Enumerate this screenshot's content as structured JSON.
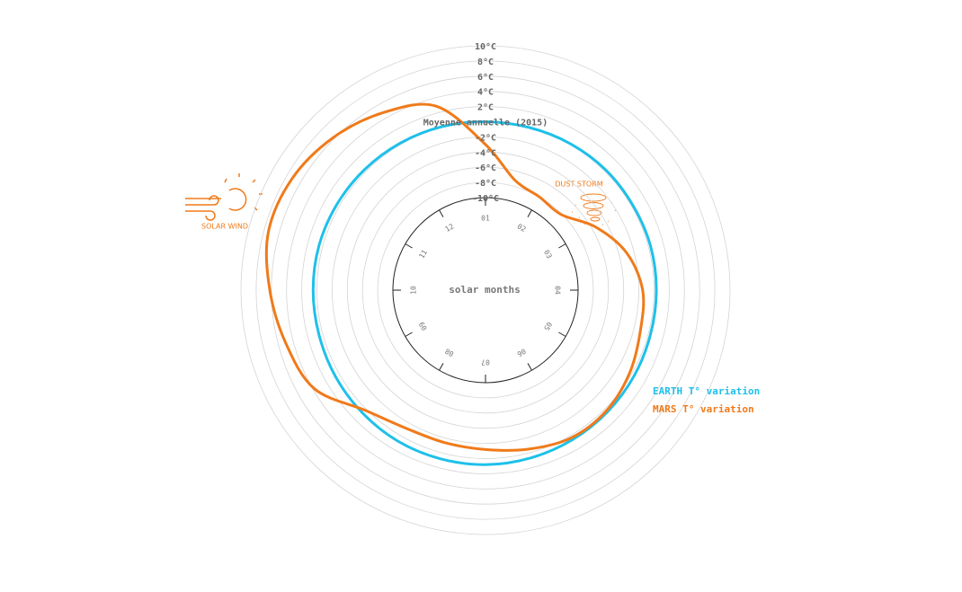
{
  "chart_data": {
    "type": "radial-line",
    "center_label": "solar months",
    "xlim": [
      0,
      12
    ],
    "xticks": [
      {
        "value": 0,
        "label": "01"
      },
      {
        "value": 1,
        "label": "02"
      },
      {
        "value": 2,
        "label": "03"
      },
      {
        "value": 3,
        "label": "04"
      },
      {
        "value": 4,
        "label": "05"
      },
      {
        "value": 5,
        "label": "06"
      },
      {
        "value": 6,
        "label": "07"
      },
      {
        "value": 7,
        "label": "08"
      },
      {
        "value": 8,
        "label": "09"
      },
      {
        "value": 9,
        "label": "10"
      },
      {
        "value": 10,
        "label": "11"
      },
      {
        "value": 11,
        "label": "12"
      }
    ],
    "ylim": [
      -10,
      10
    ],
    "yticks": [
      {
        "value": -10,
        "label": "-10°C"
      },
      {
        "value": -8,
        "label": "-8°C"
      },
      {
        "value": -6,
        "label": "-6°C"
      },
      {
        "value": -4,
        "label": "-4°C"
      },
      {
        "value": -2,
        "label": "-2°C"
      },
      {
        "value": 0,
        "label": "Moyenne annuelle (2015)"
      },
      {
        "value": 2,
        "label": "2°C"
      },
      {
        "value": 4,
        "label": "4°C"
      },
      {
        "value": 6,
        "label": "6°C"
      },
      {
        "value": 8,
        "label": "8°C"
      },
      {
        "value": 10,
        "label": "10°C"
      }
    ],
    "grid": true,
    "x": [
      0,
      0.5,
      1,
      1.5,
      2,
      2.5,
      3,
      3.5,
      4,
      4.5,
      5,
      5.5,
      6,
      6.5,
      7,
      7.5,
      8,
      8.5,
      9,
      9.5,
      10,
      10.5,
      11,
      11.5
    ],
    "series": [
      {
        "name": "EARTH T° variation",
        "color": "#1ec0ea",
        "values": [
          0,
          0,
          0.1,
          0.2,
          0.2,
          0.3,
          0.3,
          0.3,
          0.4,
          0.5,
          0.6,
          0.7,
          0.8,
          0.8,
          0.8,
          0.7,
          0.6,
          0.5,
          0.5,
          0.5,
          0.4,
          0.3,
          0.2,
          0.1
        ]
      },
      {
        "name": "MARS T° variation",
        "color": "#f07a1a",
        "values": [
          -3,
          -7.2,
          -8,
          -8.1,
          -5.5,
          -3,
          -1.5,
          -1.1,
          -0.3,
          0.3,
          0.3,
          -0.5,
          -1.2,
          -1.4,
          -1.2,
          0.2,
          3.8,
          5,
          6.2,
          7.4,
          7.2,
          6.2,
          4.8,
          2.9
        ]
      }
    ],
    "annotations": [
      {
        "text": "SOLAR WIND"
      },
      {
        "text": "DUST STORM"
      }
    ]
  }
}
